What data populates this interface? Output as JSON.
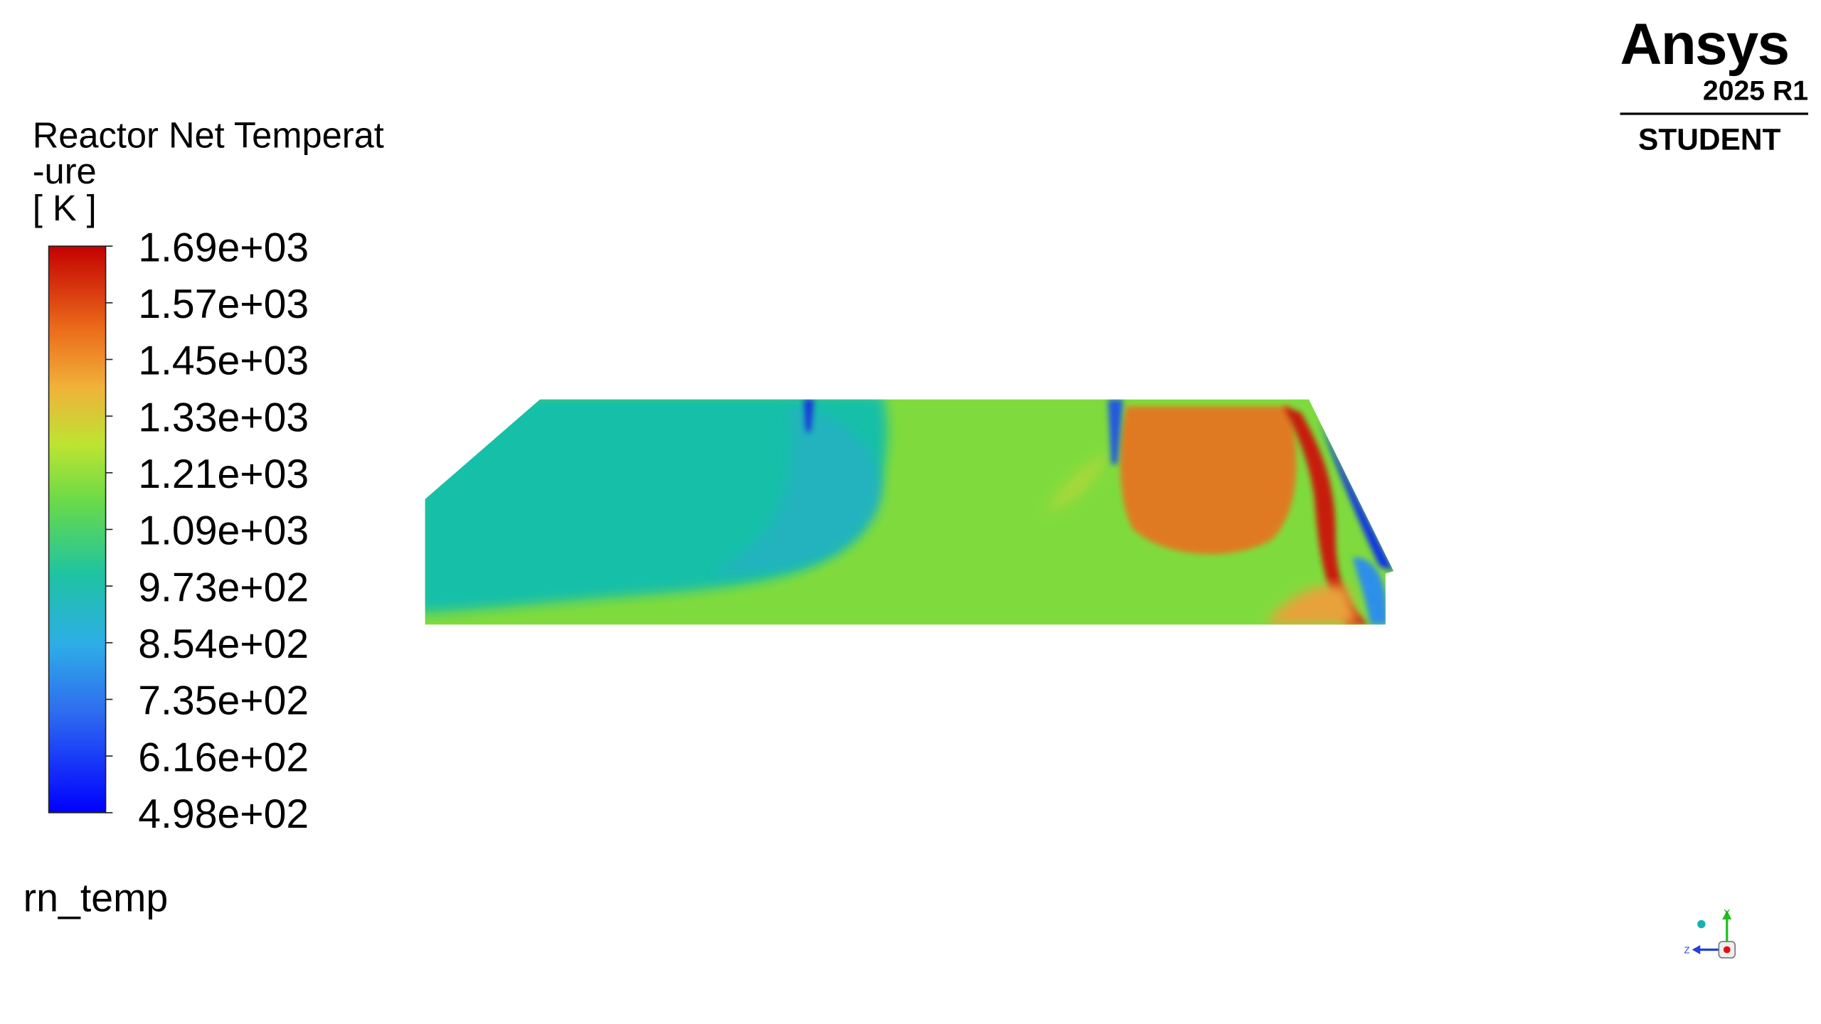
{
  "legend": {
    "title_lines": [
      "Reactor Net Temperat",
      "-ure"
    ],
    "unit": "[ K ]",
    "ticks": [
      "1.69e+03",
      "1.57e+03",
      "1.45e+03",
      "1.33e+03",
      "1.21e+03",
      "1.09e+03",
      "9.73e+02",
      "8.54e+02",
      "7.35e+02",
      "6.16e+02",
      "4.98e+02"
    ]
  },
  "variable": "rn_temp",
  "logo": {
    "brand": "Ansys",
    "version": "2025 R1",
    "edition": "STUDENT"
  },
  "triad": {
    "y": "Y",
    "z": "Z"
  }
}
